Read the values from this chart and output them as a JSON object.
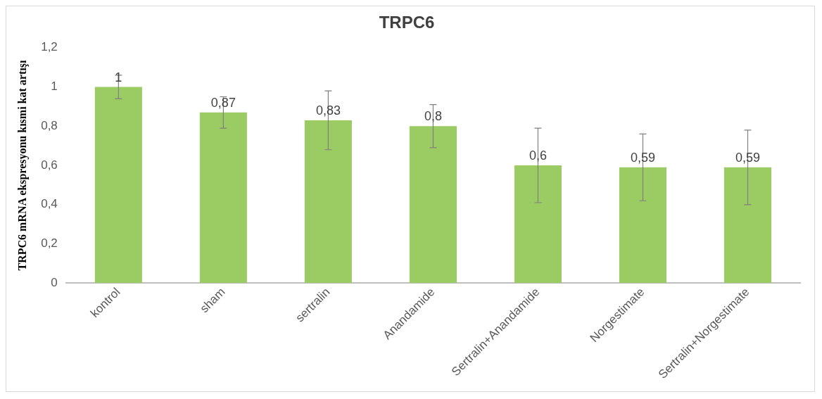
{
  "chart_data": {
    "type": "bar",
    "title": "TRPC6",
    "ylabel": "TRPC6 mRNA ekspresyonu kısmi kat artışı",
    "categories": [
      "kontrol",
      "sham",
      "sertralin",
      "Anandamide",
      "Sertralin+Anandamide",
      "Norgestimate",
      "Sertralin+Norgestimate"
    ],
    "values": [
      1,
      0.87,
      0.83,
      0.8,
      0.6,
      0.59,
      0.59
    ],
    "value_labels": [
      "1",
      "0,87",
      "0,83",
      "0,8",
      "0,6",
      "0,59",
      "0,59"
    ],
    "errors": [
      0.06,
      0.08,
      0.15,
      0.11,
      0.19,
      0.17,
      0.19
    ],
    "color": "#9bcb63",
    "ylim": [
      0,
      1.2
    ],
    "yticks": [
      {
        "value": 0,
        "label": "0"
      },
      {
        "value": 0.2,
        "label": "0,2"
      },
      {
        "value": 0.4,
        "label": "0,4"
      },
      {
        "value": 0.6,
        "label": "0,6"
      },
      {
        "value": 0.8,
        "label": "0,8"
      },
      {
        "value": 1,
        "label": "1"
      },
      {
        "value": 1.2,
        "label": "1,2"
      }
    ],
    "grid": false,
    "legend": false
  }
}
